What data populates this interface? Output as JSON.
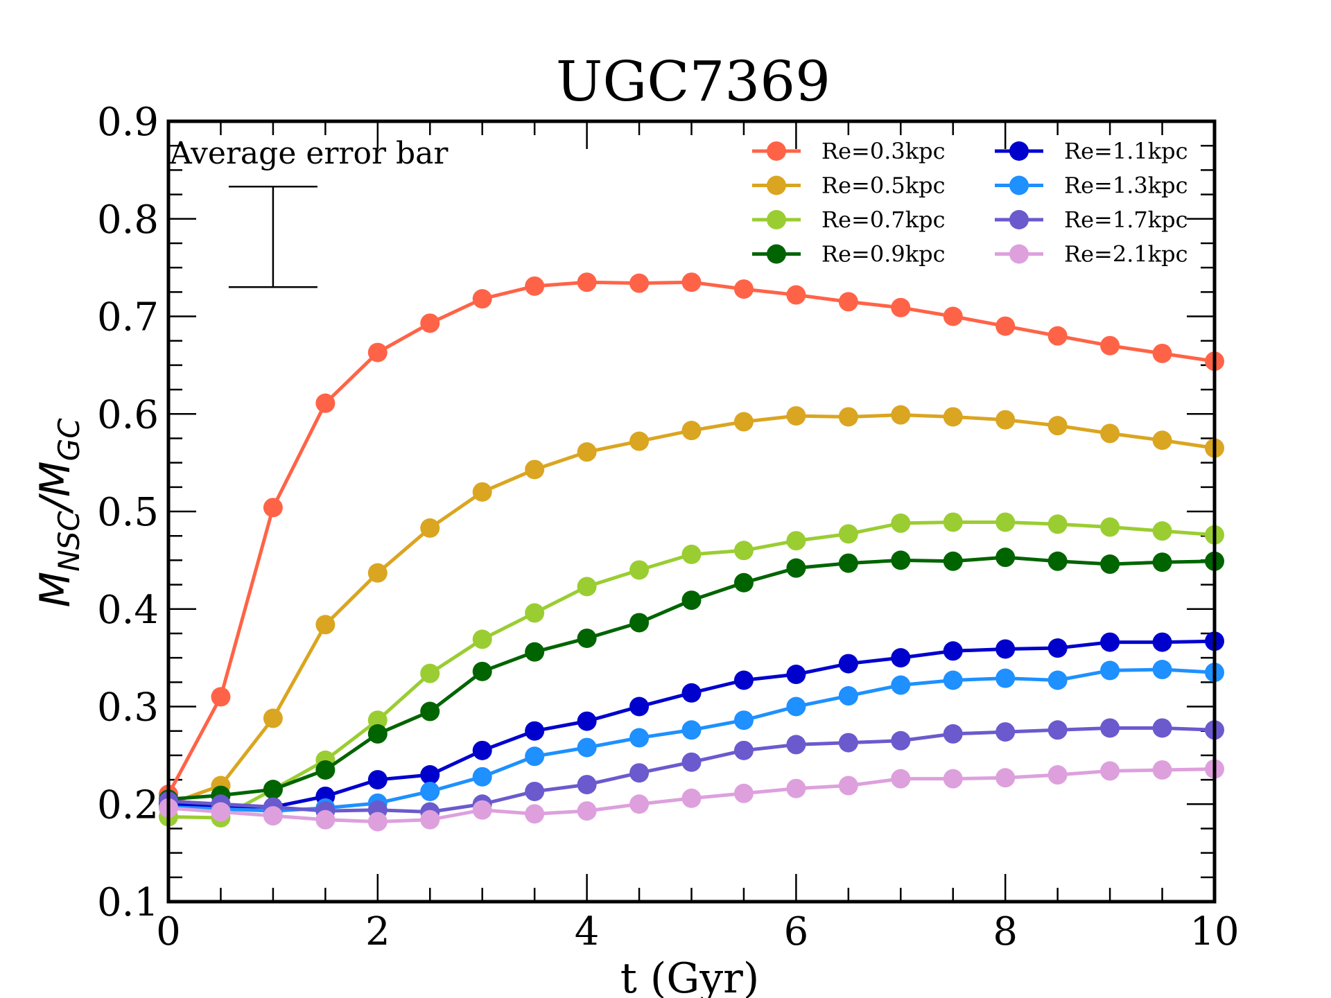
{
  "chart_data": {
    "type": "line",
    "title": "UGC7369",
    "xlabel": "t (Gyr)",
    "ylabel": {
      "base_main": "M",
      "sub_main": "NSC",
      "slash": "/",
      "base_den": "M",
      "sub_den": "GC"
    },
    "xlim": [
      0,
      10
    ],
    "ylim": [
      0.1,
      0.9
    ],
    "x_ticks": [
      0,
      2,
      4,
      6,
      8,
      10
    ],
    "x_tick_labels": [
      "0",
      "2",
      "4",
      "6",
      "8",
      "10"
    ],
    "y_ticks": [
      0.1,
      0.2,
      0.3,
      0.4,
      0.5,
      0.6,
      0.7,
      0.8,
      0.9
    ],
    "y_tick_labels": [
      "0.1",
      "0.2",
      "0.3",
      "0.4",
      "0.5",
      "0.6",
      "0.7",
      "0.8",
      "0.9"
    ],
    "grid": false,
    "legend_position": "top-right",
    "annotation": {
      "text": "Average error bar",
      "x": 1,
      "y_low": 0.73,
      "y_high": 0.833
    },
    "x": [
      0,
      0.5,
      1,
      1.5,
      2,
      2.5,
      3,
      3.5,
      4,
      4.5,
      5,
      5.5,
      6,
      6.5,
      7,
      7.5,
      8,
      8.5,
      9,
      9.5,
      10
    ],
    "series": [
      {
        "name": "Re=0.3kpc",
        "color": "#ff6347",
        "values": [
          0.21,
          0.31,
          0.504,
          0.611,
          0.663,
          0.693,
          0.718,
          0.731,
          0.735,
          0.734,
          0.735,
          0.728,
          0.722,
          0.715,
          0.709,
          0.7,
          0.69,
          0.68,
          0.67,
          0.662,
          0.654
        ]
      },
      {
        "name": "Re=0.5kpc",
        "color": "#daa520",
        "values": [
          0.2,
          0.219,
          0.288,
          0.384,
          0.437,
          0.483,
          0.52,
          0.543,
          0.561,
          0.572,
          0.583,
          0.592,
          0.598,
          0.597,
          0.599,
          0.597,
          0.594,
          0.588,
          0.58,
          0.573,
          0.565
        ]
      },
      {
        "name": "Re=0.7kpc",
        "color": "#9acd32",
        "values": [
          0.187,
          0.186,
          0.215,
          0.245,
          0.286,
          0.334,
          0.369,
          0.396,
          0.423,
          0.44,
          0.456,
          0.46,
          0.47,
          0.477,
          0.488,
          0.489,
          0.489,
          0.487,
          0.484,
          0.48,
          0.476
        ]
      },
      {
        "name": "Re=0.9kpc",
        "color": "#006400",
        "values": [
          0.205,
          0.209,
          0.215,
          0.235,
          0.272,
          0.295,
          0.336,
          0.356,
          0.37,
          0.386,
          0.409,
          0.427,
          0.442,
          0.447,
          0.45,
          0.449,
          0.453,
          0.449,
          0.446,
          0.448,
          0.449
        ]
      },
      {
        "name": "Re=1.1kpc",
        "color": "#0000cd",
        "values": [
          0.2,
          0.198,
          0.197,
          0.208,
          0.225,
          0.23,
          0.255,
          0.275,
          0.285,
          0.3,
          0.314,
          0.327,
          0.333,
          0.344,
          0.35,
          0.357,
          0.359,
          0.36,
          0.366,
          0.366,
          0.367
        ]
      },
      {
        "name": "Re=1.3kpc",
        "color": "#1e90ff",
        "values": [
          0.197,
          0.195,
          0.193,
          0.196,
          0.201,
          0.213,
          0.228,
          0.249,
          0.258,
          0.268,
          0.276,
          0.286,
          0.3,
          0.311,
          0.322,
          0.327,
          0.329,
          0.327,
          0.337,
          0.338,
          0.335
        ]
      },
      {
        "name": "Re=1.7kpc",
        "color": "#6a5acd",
        "values": [
          0.203,
          0.2,
          0.197,
          0.193,
          0.194,
          0.192,
          0.2,
          0.213,
          0.22,
          0.232,
          0.243,
          0.255,
          0.261,
          0.263,
          0.265,
          0.272,
          0.274,
          0.276,
          0.278,
          0.278,
          0.276
        ]
      },
      {
        "name": "Re=2.1kpc",
        "color": "#dda0dd",
        "values": [
          0.196,
          0.192,
          0.188,
          0.184,
          0.182,
          0.184,
          0.194,
          0.19,
          0.193,
          0.2,
          0.206,
          0.211,
          0.216,
          0.219,
          0.226,
          0.226,
          0.227,
          0.23,
          0.234,
          0.235,
          0.236
        ]
      }
    ]
  }
}
